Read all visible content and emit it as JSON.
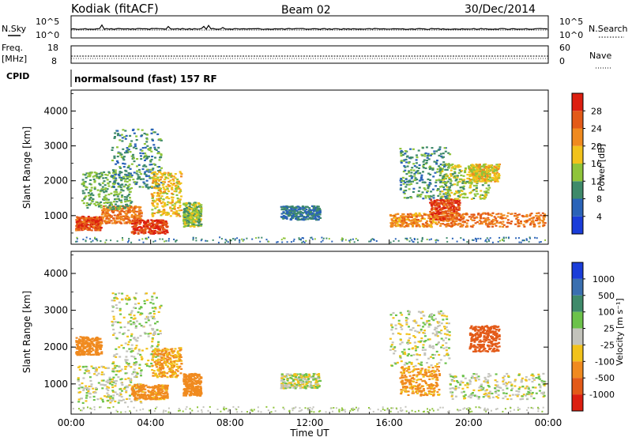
{
  "header": {
    "station": "Kodiak (fitACF)",
    "beam": "Beam 02",
    "date": "30/Dec/2014"
  },
  "summary_panels": {
    "nsky_label": "N.Sky",
    "nsearch_label": "N.Search",
    "noise_ticks": [
      "10^5",
      "10^0"
    ],
    "freq_label_1": "Freq.",
    "freq_label_2": "[MHz]",
    "freq_ticks": [
      "18",
      "8"
    ],
    "nave_label": "Nave",
    "nave_ticks": [
      "60",
      "0"
    ],
    "cpid_label": "CPID",
    "cpid_text": "normalsound (fast) 157 RF"
  },
  "x_axis": {
    "title": "Time UT",
    "ticks": [
      "00:00",
      "04:00",
      "08:00",
      "12:00",
      "16:00",
      "20:00",
      "00:00"
    ]
  },
  "y_axis": {
    "title": "Slant Range [km]",
    "ticks": [
      "1000",
      "2000",
      "3000",
      "4000"
    ]
  },
  "power_colorbar": {
    "title": "Power [dB]",
    "labels": [
      "4",
      "8",
      "12",
      "16",
      "20",
      "24",
      "28"
    ],
    "colors": [
      "#1a3dd9",
      "#2a63b8",
      "#3f8a6a",
      "#8fc43a",
      "#f2c21b",
      "#f08a1f",
      "#e35a18",
      "#dc1f10"
    ]
  },
  "velocity_colorbar": {
    "title": "Velocity [m s⁻¹]",
    "labels": [
      "1000",
      "500",
      "100",
      "25",
      "-25",
      "-100",
      "-500",
      "-1000"
    ],
    "colors": [
      "#1a3dd9",
      "#3a6fb0",
      "#3f8a6a",
      "#6cc24a",
      "#c3c3bb",
      "#f2c21b",
      "#f08a1f",
      "#e35a18",
      "#dc1f10"
    ]
  },
  "chart_data": [
    {
      "type": "heatmap",
      "panel": "power",
      "xlabel": "Time UT",
      "ylabel": "Slant Range [km]",
      "xlim_hours": [
        0,
        24
      ],
      "ylim_km": [
        180,
        4600
      ],
      "colorbar_label": "Power [dB]",
      "regions": [
        {
          "t": [
            0.2,
            1.5
          ],
          "r": [
            600,
            1000
          ],
          "dB": 27
        },
        {
          "t": [
            1.5,
            3.5
          ],
          "r": [
            800,
            1300
          ],
          "dB": 24
        },
        {
          "t": [
            3.0,
            4.8
          ],
          "r": [
            500,
            900
          ],
          "dB": 28
        },
        {
          "t": [
            0.5,
            3.0
          ],
          "r": [
            1200,
            2300
          ],
          "dB": 12
        },
        {
          "t": [
            2.0,
            4.5
          ],
          "r": [
            1800,
            3500
          ],
          "dB": 10
        },
        {
          "t": [
            4.0,
            5.5
          ],
          "r": [
            1000,
            2300
          ],
          "dB": 18
        },
        {
          "t": [
            5.6,
            6.5
          ],
          "r": [
            700,
            1400
          ],
          "dB": 14
        },
        {
          "t": [
            10.5,
            12.5
          ],
          "r": [
            900,
            1300
          ],
          "dB": 8
        },
        {
          "t": [
            16.0,
            19.0
          ],
          "r": [
            700,
            1100
          ],
          "dB": 22
        },
        {
          "t": [
            18.0,
            19.5
          ],
          "r": [
            900,
            1500
          ],
          "dB": 27
        },
        {
          "t": [
            19.0,
            23.8
          ],
          "r": [
            700,
            1100
          ],
          "dB": 24
        },
        {
          "t": [
            16.5,
            19.0
          ],
          "r": [
            1500,
            3000
          ],
          "dB": 10
        },
        {
          "t": [
            18.5,
            21.0
          ],
          "r": [
            1500,
            2500
          ],
          "dB": 14
        },
        {
          "t": [
            20.0,
            21.5
          ],
          "r": [
            2000,
            2500
          ],
          "dB": 18
        }
      ]
    },
    {
      "type": "heatmap",
      "panel": "velocity",
      "xlabel": "Time UT",
      "ylabel": "Slant Range [km]",
      "xlim_hours": [
        0,
        24
      ],
      "ylim_km": [
        180,
        4600
      ],
      "colorbar_label": "Velocity [m s⁻¹]",
      "regions": [
        {
          "t": [
            0.3,
            3.5
          ],
          "r": [
            500,
            1500
          ],
          "v": 0
        },
        {
          "t": [
            2.0,
            4.5
          ],
          "r": [
            1500,
            3500
          ],
          "v": 0
        },
        {
          "t": [
            3.0,
            4.8
          ],
          "r": [
            600,
            1000
          ],
          "v": -150
        },
        {
          "t": [
            0.2,
            1.5
          ],
          "r": [
            1800,
            2300
          ],
          "v": -200
        },
        {
          "t": [
            4.0,
            5.5
          ],
          "r": [
            1200,
            2000
          ],
          "v": -100
        },
        {
          "t": [
            5.6,
            6.5
          ],
          "r": [
            700,
            1300
          ],
          "v": -300
        },
        {
          "t": [
            10.5,
            12.5
          ],
          "r": [
            900,
            1300
          ],
          "v": 0
        },
        {
          "t": [
            16.5,
            18.5
          ],
          "r": [
            700,
            1500
          ],
          "v": -120
        },
        {
          "t": [
            16.0,
            19.0
          ],
          "r": [
            1500,
            3000
          ],
          "v": 0
        },
        {
          "t": [
            19.0,
            23.8
          ],
          "r": [
            600,
            1300
          ],
          "v": 0
        },
        {
          "t": [
            20.0,
            21.5
          ],
          "r": [
            1900,
            2600
          ],
          "v": -600
        }
      ]
    }
  ]
}
